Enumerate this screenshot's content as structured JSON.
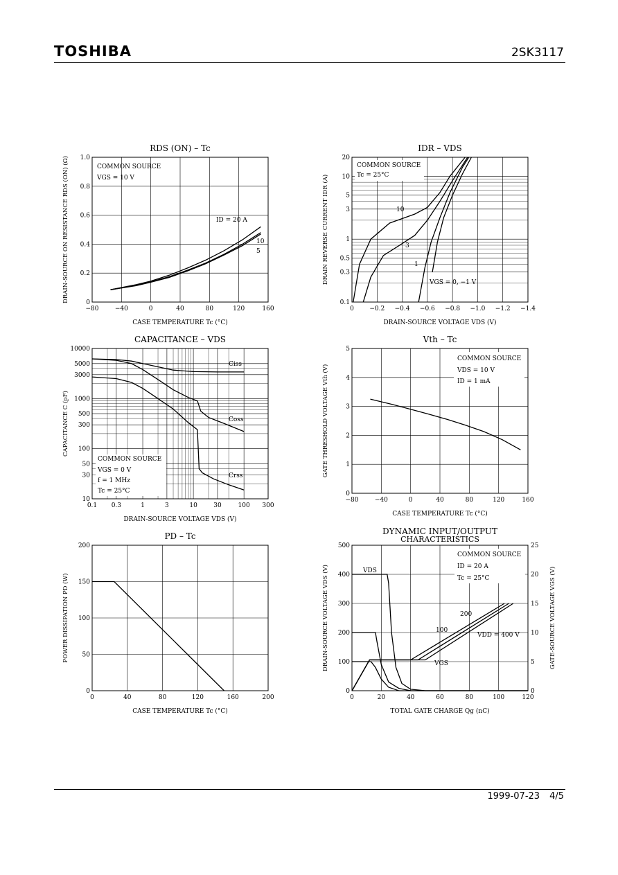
{
  "header": {
    "brand": "TOSHIBA",
    "part_number": "2SK3117"
  },
  "footer": {
    "date": "1999-07-23",
    "page": "4/5"
  },
  "chart_data": [
    {
      "id": "rds",
      "type": "line",
      "title": "RDS (ON) – Tc",
      "xlabel": "CASE TEMPERATURE   Tc   (°C)",
      "ylabel": "DRAIN-SOURCE ON RESISTANCE RDS (ON)  (Ω)",
      "xlim": [
        -80,
        160
      ],
      "ylim": [
        0,
        1.0
      ],
      "xscale": "linear",
      "yscale": "linear",
      "xticks": [
        -80,
        -40,
        0,
        40,
        80,
        120,
        160
      ],
      "xtick_labels": [
        "−80",
        "−40",
        "0",
        "40",
        "80",
        "120",
        "160"
      ],
      "yticks": [
        0,
        0.2,
        0.4,
        0.6,
        0.8,
        1.0
      ],
      "ytick_labels": [
        "0",
        "0.2",
        "0.4",
        "0.6",
        "0.8",
        "1.0"
      ],
      "annotations": [
        "COMMON SOURCE",
        "VGS = 10 V"
      ],
      "series": [
        {
          "name": "ID = 20 A",
          "x": [
            -55,
            -20,
            0,
            25,
            50,
            75,
            100,
            125,
            150
          ],
          "y": [
            0.085,
            0.12,
            0.145,
            0.185,
            0.235,
            0.29,
            0.355,
            0.43,
            0.52
          ]
        },
        {
          "name": "10",
          "x": [
            -55,
            -20,
            0,
            25,
            50,
            75,
            100,
            125,
            150
          ],
          "y": [
            0.085,
            0.115,
            0.14,
            0.175,
            0.22,
            0.27,
            0.33,
            0.4,
            0.48
          ]
        },
        {
          "name": "5",
          "x": [
            -55,
            -20,
            0,
            25,
            50,
            75,
            100,
            125,
            150
          ],
          "y": [
            0.085,
            0.113,
            0.137,
            0.17,
            0.215,
            0.265,
            0.325,
            0.39,
            0.47
          ]
        }
      ]
    },
    {
      "id": "idr",
      "type": "line",
      "title": "IDR – VDS",
      "xlabel": "DRAIN-SOURCE VOLTAGE   VDS   (V)",
      "ylabel": "DRAIN REVERSE CURRENT   IDR   (A)",
      "xlim": [
        0,
        -1.4
      ],
      "ylim": [
        0.1,
        20
      ],
      "xscale": "linear",
      "yscale": "log",
      "xticks": [
        0,
        -0.2,
        -0.4,
        -0.6,
        -0.8,
        -1.0,
        -1.2,
        -1.4
      ],
      "xtick_labels": [
        "0",
        "−0.2",
        "−0.4",
        "−0.6",
        "−0.8",
        "−1.0",
        "−1.2",
        "−1.4"
      ],
      "yticks": [
        0.1,
        0.3,
        0.5,
        1,
        3,
        5,
        10,
        20
      ],
      "ytick_labels": [
        "0.1",
        "0.3",
        "0.5",
        "1",
        "3",
        "5",
        "10",
        "20"
      ],
      "annotations": [
        "COMMON SOURCE",
        "Tc = 25°C",
        "VGS = 0, −1 V"
      ],
      "series": [
        {
          "name": "10",
          "x": [
            -0.01,
            -0.06,
            -0.15,
            -0.3,
            -0.5,
            -0.6,
            -0.7,
            -0.78,
            -0.9
          ],
          "y": [
            0.1,
            0.4,
            1.0,
            1.8,
            2.5,
            3.2,
            5.5,
            10,
            20
          ]
        },
        {
          "name": "3",
          "x": [
            -0.09,
            -0.15,
            -0.25,
            -0.4,
            -0.5,
            -0.6,
            -0.7,
            -0.8,
            -0.92
          ],
          "y": [
            0.1,
            0.25,
            0.55,
            0.85,
            1.15,
            2.0,
            4.0,
            8.5,
            20
          ]
        },
        {
          "name": "1",
          "x": [
            -0.53,
            -0.58,
            -0.63,
            -0.7,
            -0.78,
            -0.88,
            -0.93
          ],
          "y": [
            0.1,
            0.35,
            0.9,
            2.2,
            5.5,
            14,
            20
          ]
        },
        {
          "name": "VGS = 0, −1 V",
          "x": [
            -0.64,
            -0.68,
            -0.73,
            -0.8,
            -0.88,
            -0.95
          ],
          "y": [
            0.3,
            0.9,
            2.2,
            5.0,
            11,
            20
          ]
        }
      ]
    },
    {
      "id": "cap",
      "type": "line",
      "title": "CAPACITANCE – VDS",
      "xlabel": "DRAIN-SOURCE VOLTAGE   VDS   (V)",
      "ylabel": "CAPACITANCE   C   (pF)",
      "xlim": [
        0.1,
        300
      ],
      "ylim": [
        10,
        10000
      ],
      "xscale": "log",
      "yscale": "log",
      "xticks": [
        0.1,
        0.3,
        1,
        3,
        10,
        30,
        100,
        300
      ],
      "xtick_labels": [
        "0.1",
        "0.3",
        "1",
        "3",
        "10",
        "30",
        "100",
        "300"
      ],
      "yticks": [
        10,
        30,
        50,
        100,
        300,
        500,
        1000,
        3000,
        5000,
        10000
      ],
      "ytick_labels": [
        "10",
        "30",
        "50",
        "100",
        "300",
        "500",
        "1000",
        "3000",
        "5000",
        "10000"
      ],
      "annotations": [
        "COMMON SOURCE",
        "VGS = 0 V",
        "f = 1 MHz",
        "Tc = 25°C"
      ],
      "series": [
        {
          "name": "Ciss",
          "x": [
            0.1,
            0.3,
            0.6,
            1,
            2,
            4,
            10,
            30,
            100
          ],
          "y": [
            6200,
            6000,
            5600,
            5000,
            4300,
            3700,
            3450,
            3400,
            3400
          ]
        },
        {
          "name": "Coss",
          "x": [
            0.1,
            0.3,
            0.6,
            1,
            2,
            4,
            8,
            12,
            14,
            20,
            40,
            100
          ],
          "y": [
            6200,
            5800,
            5000,
            3800,
            2400,
            1500,
            1050,
            900,
            560,
            420,
            320,
            220
          ]
        },
        {
          "name": "Crss",
          "x": [
            0.1,
            0.3,
            0.6,
            1,
            2,
            4,
            8,
            12,
            13,
            15,
            25,
            50,
            100
          ],
          "y": [
            2700,
            2500,
            2100,
            1600,
            1000,
            620,
            330,
            240,
            40,
            33,
            25,
            19,
            15
          ]
        }
      ]
    },
    {
      "id": "vth",
      "type": "line",
      "title": "Vth – Tc",
      "xlabel": "CASE TEMPERATURE   Tc   (°C)",
      "ylabel": "GATE THRESHOLD VOLTAGE   Vth   (V)",
      "xlim": [
        -80,
        160
      ],
      "ylim": [
        0,
        5
      ],
      "xscale": "linear",
      "yscale": "linear",
      "xticks": [
        -80,
        -40,
        0,
        40,
        80,
        120,
        160
      ],
      "xtick_labels": [
        "−80",
        "−40",
        "0",
        "40",
        "80",
        "120",
        "160"
      ],
      "yticks": [
        0,
        1,
        2,
        3,
        4,
        5
      ],
      "ytick_labels": [
        "0",
        "1",
        "2",
        "3",
        "4",
        "5"
      ],
      "annotations": [
        "COMMON SOURCE",
        "VDS = 10 V",
        "ID = 1 mA"
      ],
      "series": [
        {
          "name": "",
          "x": [
            -55,
            -25,
            0,
            25,
            50,
            75,
            100,
            125,
            150
          ],
          "y": [
            3.25,
            3.07,
            2.9,
            2.73,
            2.55,
            2.35,
            2.13,
            1.85,
            1.5
          ]
        }
      ]
    },
    {
      "id": "pd",
      "type": "line",
      "title": "PD – Tc",
      "xlabel": "CASE TEMPERATURE   Tc   (°C)",
      "ylabel": "POWER DISSIPATION   PD   (W)",
      "xlim": [
        0,
        200
      ],
      "ylim": [
        0,
        200
      ],
      "xscale": "linear",
      "yscale": "linear",
      "xticks": [
        0,
        40,
        80,
        120,
        160,
        200
      ],
      "xtick_labels": [
        "0",
        "40",
        "80",
        "120",
        "160",
        "200"
      ],
      "yticks": [
        0,
        50,
        100,
        150,
        200
      ],
      "ytick_labels": [
        "0",
        "50",
        "100",
        "150",
        "200"
      ],
      "series": [
        {
          "name": "",
          "x": [
            0,
            25,
            150
          ],
          "y": [
            150,
            150,
            0
          ]
        }
      ]
    },
    {
      "id": "dyn",
      "type": "line",
      "title": "DYNAMIC INPUT/OUTPUT",
      "subtitle": "CHARACTERISTICS",
      "xlabel": "TOTAL GATE CHARGE   Qg   (nC)",
      "ylabel": "DRAIN-SOURCE VOLTAGE   VDS   (V)",
      "ylabel_right": "GATE-SOURCE VOLTAGE   VGS   (V)",
      "xlim": [
        0,
        120
      ],
      "ylim": [
        0,
        500
      ],
      "ylim_right": [
        0,
        25
      ],
      "xscale": "linear",
      "yscale": "linear",
      "xticks": [
        0,
        20,
        40,
        60,
        80,
        100,
        120
      ],
      "xtick_labels": [
        "0",
        "20",
        "40",
        "60",
        "80",
        "100",
        "120"
      ],
      "yticks": [
        0,
        100,
        200,
        300,
        400,
        500
      ],
      "ytick_labels": [
        "0",
        "100",
        "200",
        "300",
        "400",
        "500"
      ],
      "yticks_right": [
        0,
        5,
        10,
        15,
        20,
        25
      ],
      "ytick_labels_right": [
        "0",
        "5",
        "10",
        "15",
        "20",
        "25"
      ],
      "annotations": [
        "COMMON SOURCE",
        "ID = 20 A",
        "Tc = 25°C",
        "VDS",
        "VGS",
        "VDD = 400 V"
      ],
      "series": [
        {
          "name": "VDS (VDD = 400 V)",
          "axis": "left",
          "x": [
            0,
            24,
            25,
            27,
            30,
            34,
            40,
            50,
            120
          ],
          "y": [
            400,
            400,
            370,
            200,
            80,
            25,
            5,
            0,
            0
          ]
        },
        {
          "name": "VDS 200",
          "axis": "left",
          "x": [
            0,
            16,
            17,
            20,
            25,
            32,
            40,
            120
          ],
          "y": [
            200,
            200,
            170,
            90,
            30,
            8,
            0,
            0
          ]
        },
        {
          "name": "VDS 100",
          "axis": "left",
          "x": [
            0,
            13,
            16,
            20,
            25,
            32,
            120
          ],
          "y": [
            100,
            100,
            80,
            40,
            12,
            0,
            0
          ]
        },
        {
          "name": "VGS (VDD = 400 V)",
          "axis": "right",
          "x": [
            0,
            12,
            50,
            110
          ],
          "y": [
            0,
            5.3,
            5.3,
            15
          ]
        },
        {
          "name": "VGS 200",
          "axis": "right",
          "x": [
            0,
            12,
            45,
            107
          ],
          "y": [
            0,
            5.3,
            5.3,
            15
          ]
        },
        {
          "name": "VGS 100",
          "axis": "right",
          "x": [
            0,
            12,
            40,
            104
          ],
          "y": [
            0,
            5.3,
            5.3,
            15
          ]
        }
      ],
      "curve_labels": [
        "100",
        "200"
      ]
    }
  ]
}
